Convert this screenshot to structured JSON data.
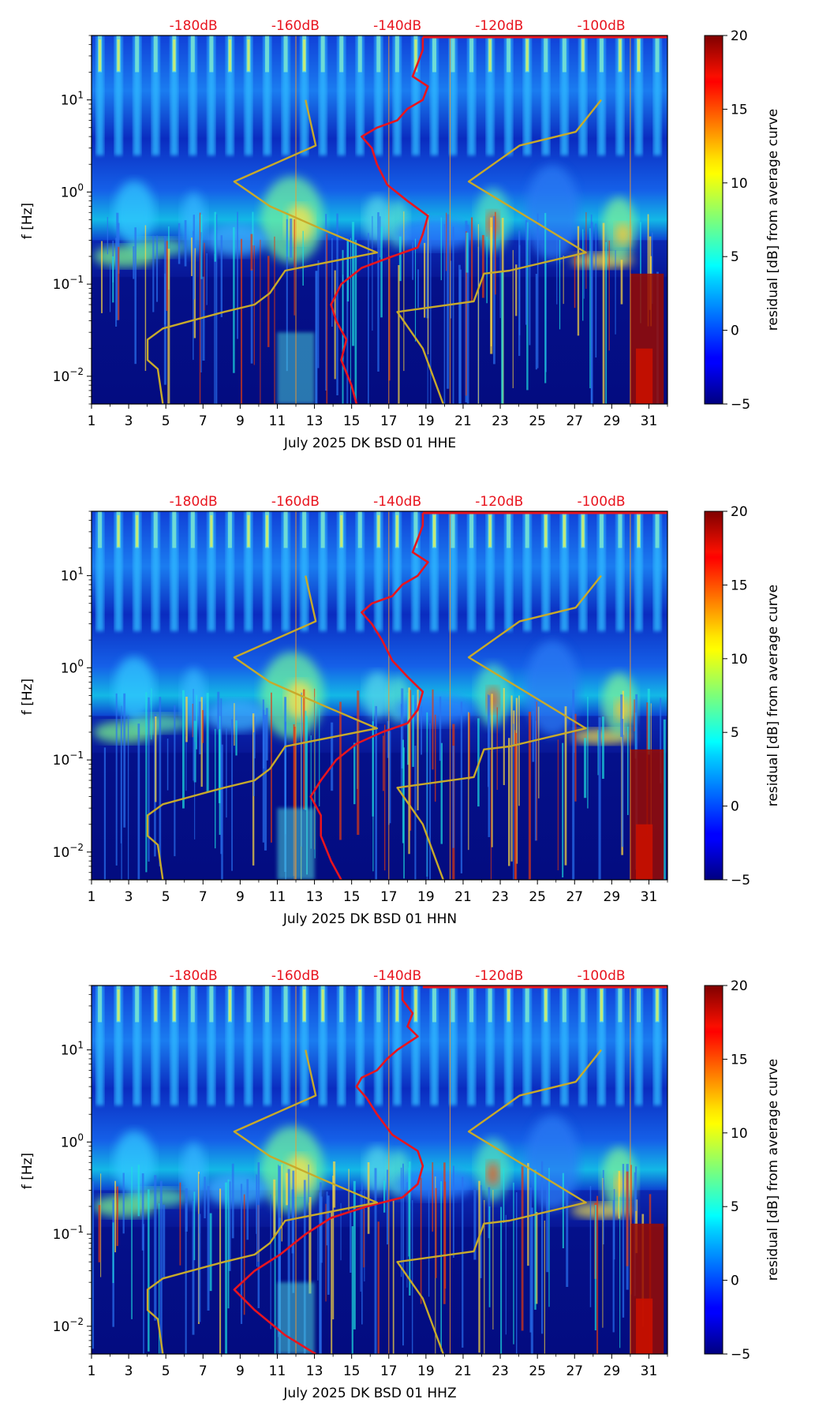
{
  "colors": {
    "power_curve": "#e8141e",
    "reference_curve": "#c8aa2a",
    "db_labels": "#e8141e",
    "colormap": "jet"
  },
  "shared": {
    "ylabel": "f [Hz]",
    "colorbar_label": "residual [dB] from average curve",
    "colorbar_ticks": [
      "20",
      "15",
      "10",
      "5",
      "0",
      "−5"
    ],
    "colorbar_range": [
      -5,
      20
    ],
    "db_top_labels": [
      "-180dB",
      "-160dB",
      "-140dB",
      "-120dB",
      "-100dB"
    ],
    "x_tick_labels": [
      "1",
      "3",
      "5",
      "7",
      "9",
      "11",
      "13",
      "15",
      "17",
      "19",
      "21",
      "23",
      "25",
      "27",
      "29",
      "31"
    ],
    "y_tick_labels": [
      {
        "base": "10",
        "exp": "1"
      },
      {
        "base": "10",
        "exp": "0"
      },
      {
        "base": "10",
        "exp": "−1"
      },
      {
        "base": "10",
        "exp": "−2"
      }
    ]
  },
  "chart_data": [
    {
      "type": "heatmap",
      "xlabel": "July 2025 DK BSD 01 HHE",
      "ylabel": "f [Hz]",
      "xlim": [
        1,
        32
      ],
      "ylim": [
        0.005,
        50
      ],
      "yscale": "log",
      "colorbar": {
        "label": "residual [dB] from average curve",
        "range": [
          -5,
          20
        ]
      },
      "series": [
        {
          "x": [
            -135,
            -135,
            -136,
            -137,
            -134,
            -135,
            -138,
            -140,
            -144,
            -147,
            -145,
            -144,
            -142,
            -138,
            -134,
            -135,
            -136,
            -141,
            -147,
            -151,
            -153,
            -152,
            -150,
            -151,
            -149,
            -148
          ],
          "y": [
            48,
            35,
            25,
            18,
            14,
            10,
            8,
            6,
            5,
            4,
            3,
            2,
            1.2,
            0.8,
            0.55,
            0.35,
            0.25,
            0.2,
            0.15,
            0.1,
            0.06,
            0.04,
            0.025,
            0.015,
            0.008,
            0.005
          ]
        },
        {
          "x": [
            -158,
            -156,
            -172,
            -165,
            -155,
            -144,
            -162,
            -165,
            -168,
            -174,
            -186,
            -189,
            -189,
            -187,
            -186
          ],
          "y": [
            10,
            3.2,
            1.3,
            0.7,
            0.4,
            0.22,
            0.14,
            0.08,
            0.06,
            0.05,
            0.033,
            0.025,
            0.015,
            0.012,
            0.005
          ]
        },
        {
          "x": [
            -100,
            -105,
            -116,
            -126,
            -118,
            -103,
            -118,
            -123,
            -125,
            -140,
            -135,
            -131
          ],
          "y": [
            10,
            4.5,
            3.2,
            1.3,
            0.7,
            0.22,
            0.14,
            0.13,
            0.065,
            0.05,
            0.02,
            0.005
          ]
        }
      ]
    },
    {
      "type": "heatmap",
      "xlabel": "July 2025 DK BSD 01 HHN",
      "ylabel": "f [Hz]",
      "xlim": [
        1,
        32
      ],
      "ylim": [
        0.005,
        50
      ],
      "yscale": "log",
      "colorbar": {
        "label": "residual [dB] from average curve",
        "range": [
          -5,
          20
        ]
      },
      "series": [
        {
          "x": [
            -135,
            -135,
            -136,
            -137,
            -134,
            -136,
            -139,
            -141,
            -145,
            -147,
            -145,
            -143,
            -141,
            -138,
            -135,
            -136,
            -138,
            -143,
            -148,
            -152,
            -155,
            -157,
            -155,
            -155,
            -153,
            -151
          ],
          "y": [
            48,
            35,
            25,
            18,
            14,
            10,
            8,
            6,
            5,
            4,
            3,
            2,
            1.2,
            0.8,
            0.55,
            0.35,
            0.25,
            0.2,
            0.15,
            0.1,
            0.06,
            0.04,
            0.025,
            0.015,
            0.008,
            0.005
          ]
        },
        {
          "x": [
            -158,
            -156,
            -172,
            -165,
            -155,
            -144,
            -162,
            -165,
            -168,
            -174,
            -186,
            -189,
            -189,
            -187,
            -186
          ],
          "y": [
            10,
            3.2,
            1.3,
            0.7,
            0.4,
            0.22,
            0.14,
            0.08,
            0.06,
            0.05,
            0.033,
            0.025,
            0.015,
            0.012,
            0.005
          ]
        },
        {
          "x": [
            -100,
            -105,
            -116,
            -126,
            -118,
            -103,
            -118,
            -123,
            -125,
            -140,
            -135,
            -131
          ],
          "y": [
            10,
            4.5,
            3.2,
            1.3,
            0.7,
            0.22,
            0.14,
            0.13,
            0.065,
            0.05,
            0.02,
            0.005
          ]
        }
      ]
    },
    {
      "type": "heatmap",
      "xlabel": "July 2025 DK BSD 01 HHZ",
      "ylabel": "f [Hz]",
      "xlim": [
        1,
        32
      ],
      "ylim": [
        0.005,
        50
      ],
      "yscale": "log",
      "colorbar": {
        "label": "residual [dB] from average curve",
        "range": [
          -5,
          20
        ]
      },
      "series": [
        {
          "x": [
            -139,
            -139,
            -137,
            -138,
            -136,
            -140,
            -142,
            -144,
            -147,
            -148,
            -146,
            -144,
            -141,
            -136,
            -135,
            -136,
            -139,
            -146,
            -153,
            -158,
            -163,
            -168,
            -172,
            -168,
            -162,
            -156
          ],
          "y": [
            48,
            35,
            25,
            18,
            14,
            10,
            8,
            6,
            5,
            4,
            3,
            2,
            1.2,
            0.8,
            0.55,
            0.35,
            0.25,
            0.2,
            0.15,
            0.1,
            0.06,
            0.04,
            0.025,
            0.015,
            0.008,
            0.005
          ]
        },
        {
          "x": [
            -158,
            -156,
            -172,
            -165,
            -155,
            -144,
            -162,
            -165,
            -168,
            -174,
            -186,
            -189,
            -189,
            -187,
            -186
          ],
          "y": [
            10,
            3.2,
            1.3,
            0.7,
            0.4,
            0.22,
            0.14,
            0.08,
            0.06,
            0.05,
            0.033,
            0.025,
            0.015,
            0.012,
            0.005
          ]
        },
        {
          "x": [
            -100,
            -105,
            -116,
            -126,
            -118,
            -103,
            -118,
            -123,
            -125,
            -140,
            -135,
            -131
          ],
          "y": [
            10,
            4.5,
            3.2,
            1.3,
            0.7,
            0.22,
            0.14,
            0.13,
            0.065,
            0.05,
            0.02,
            0.005
          ]
        }
      ]
    }
  ]
}
